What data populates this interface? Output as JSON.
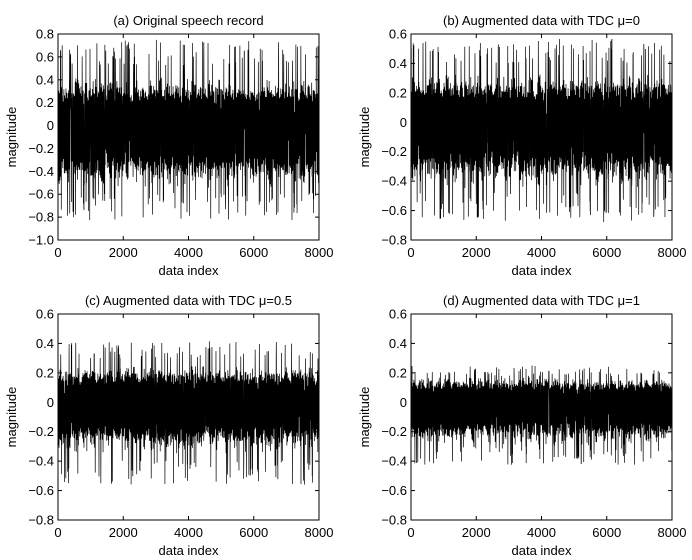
{
  "chart_data": [
    {
      "type": "line",
      "title": "(a) Original speech record",
      "xlabel": "data index",
      "ylabel": "magnitude",
      "xlim": [
        0,
        8000
      ],
      "ylim": [
        -1.0,
        0.8
      ],
      "xticks": [
        0,
        2000,
        4000,
        6000,
        8000
      ],
      "yticks": [
        -1.0,
        -0.8,
        -0.6,
        -0.4,
        -0.2,
        0,
        0.2,
        0.4,
        0.6,
        0.8
      ],
      "xtick_labels": [
        "0",
        "2000",
        "4000",
        "6000",
        "8000"
      ],
      "ytick_labels": [
        "−1.0",
        "−0.8",
        "−0.6",
        "−0.4",
        "−0.2",
        "0",
        "0.2",
        "0.4",
        "0.6",
        "0.8"
      ],
      "signal": {
        "length": 8000,
        "peak_max": 0.75,
        "trough_min": -0.83,
        "typical_max": 0.42,
        "typical_min": -0.55
      },
      "color": "#000000"
    },
    {
      "type": "line",
      "title": "(b) Augmented data with TDC μ=0",
      "xlabel": "data index",
      "ylabel": "magnitude",
      "xlim": [
        0,
        8000
      ],
      "ylim": [
        -0.8,
        0.6
      ],
      "xticks": [
        0,
        2000,
        4000,
        6000,
        8000
      ],
      "yticks": [
        -0.8,
        -0.6,
        -0.4,
        -0.2,
        0,
        0.2,
        0.4,
        0.6
      ],
      "xtick_labels": [
        "0",
        "2000",
        "4000",
        "6000",
        "8000"
      ],
      "ytick_labels": [
        "−0.8",
        "−0.6",
        "−0.4",
        "−0.2",
        "0",
        "0.2",
        "0.4",
        "0.6"
      ],
      "signal": {
        "length": 8000,
        "peak_max": 0.57,
        "trough_min": -0.68,
        "typical_max": 0.33,
        "typical_min": -0.45
      },
      "color": "#000000"
    },
    {
      "type": "line",
      "title": "(c) Augmented data with TDC μ=0.5",
      "xlabel": "data index",
      "ylabel": "magnitude",
      "xlim": [
        0,
        8000
      ],
      "ylim": [
        -0.8,
        0.6
      ],
      "xticks": [
        0,
        2000,
        4000,
        6000,
        8000
      ],
      "yticks": [
        -0.8,
        -0.6,
        -0.4,
        -0.2,
        0,
        0.2,
        0.4,
        0.6
      ],
      "xtick_labels": [
        "0",
        "2000",
        "4000",
        "6000",
        "8000"
      ],
      "ytick_labels": [
        "−0.8",
        "−0.6",
        "−0.4",
        "−0.2",
        "0",
        "0.2",
        "0.4",
        "0.6"
      ],
      "signal": {
        "length": 8000,
        "peak_max": 0.42,
        "trough_min": -0.56,
        "typical_max": 0.25,
        "typical_min": -0.35
      },
      "color": "#000000"
    },
    {
      "type": "line",
      "title": "(d) Augmented data with TDC μ=1",
      "xlabel": "data index",
      "ylabel": "magnitude",
      "xlim": [
        0,
        8000
      ],
      "ylim": [
        -0.8,
        0.6
      ],
      "xticks": [
        0,
        2000,
        4000,
        6000,
        8000
      ],
      "yticks": [
        -0.8,
        -0.6,
        -0.4,
        -0.2,
        0,
        0.2,
        0.4,
        0.6
      ],
      "xtick_labels": [
        "0",
        "2000",
        "4000",
        "6000",
        "8000"
      ],
      "ytick_labels": [
        "−0.8",
        "−0.6",
        "−0.4",
        "−0.2",
        "0",
        "0.2",
        "0.4",
        "0.6"
      ],
      "signal": {
        "length": 8000,
        "peak_max": 0.25,
        "trough_min": -0.43,
        "typical_max": 0.17,
        "typical_min": -0.3
      },
      "color": "#000000"
    }
  ]
}
